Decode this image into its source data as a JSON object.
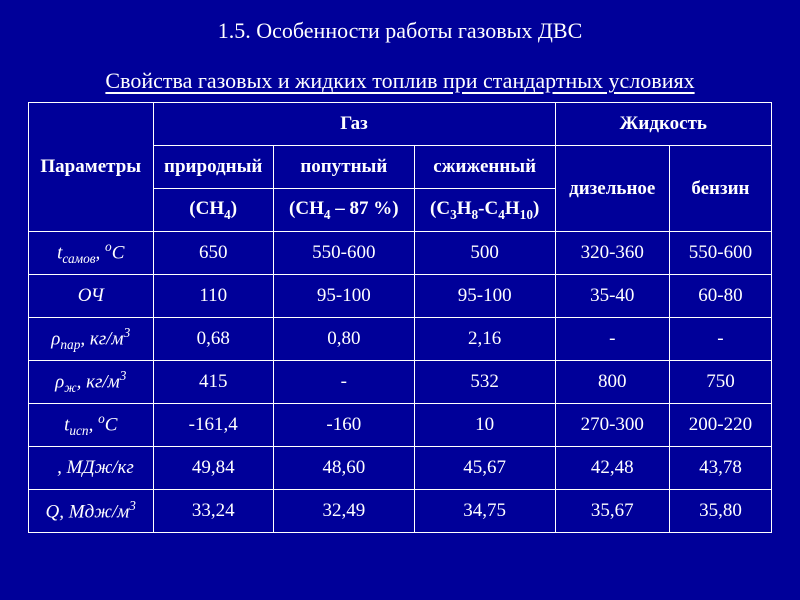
{
  "title": "1.5. Особенности работы газовых ДВС",
  "subtitle": "Свойства газовых и жидких топлив при стандартных условиях",
  "header": {
    "params": "Параметры",
    "gas": "Газ",
    "liquid": "Жидкость",
    "col1_top": "природный",
    "col2_top": "попутный",
    "col3_top": "сжиженный",
    "col4": "дизельное",
    "col5": "бензин",
    "col1_sub_html": "(CH<sub>4</sub>)",
    "col2_sub_html": "(CH<sub>4</sub> – 87 %)",
    "col3_sub_html": "(C<sub>3</sub>H<sub>8</sub>-C<sub>4</sub>H<sub>10</sub>)"
  },
  "rows": [
    {
      "label_html": "t<sub>самов</sub>, <sup>o</sup>C",
      "c": [
        "650",
        "550-600",
        "500",
        "320-360",
        "550-600"
      ]
    },
    {
      "label_html": "ОЧ",
      "c": [
        "110",
        "95-100",
        "95-100",
        "35-40",
        "60-80"
      ]
    },
    {
      "label_html": "ρ<sub>пар</sub>, кг/м<sup>3</sup>",
      "c": [
        "0,68",
        "0,80",
        "2,16",
        "-",
        "-"
      ]
    },
    {
      "label_html": "ρ<sub>ж</sub>, кг/м<sup>3</sup>",
      "c": [
        "415",
        "-",
        "532",
        "800",
        "750"
      ]
    },
    {
      "label_html": "t<sub>исп</sub>, <sup>o</sup>C",
      "c": [
        "-161,4",
        "-160",
        "10",
        "270-300",
        "200-220"
      ]
    },
    {
      "label_html": "&nbsp;&nbsp;, МДж/кг",
      "c": [
        "49,84",
        "48,60",
        "45,67",
        "42,48",
        "43,78"
      ]
    },
    {
      "label_html": "Q, Мдж/м<sup>3</sup>",
      "c": [
        "33,24",
        "32,49",
        "34,75",
        "35,67",
        "35,80"
      ]
    }
  ],
  "style": {
    "background": "#000099",
    "border_color": "#ffffff",
    "text_color": "#ffffff",
    "font_family": "Times New Roman",
    "title_fontsize": 22,
    "cell_fontsize": 19,
    "slide_width": 800,
    "slide_height": 600
  }
}
